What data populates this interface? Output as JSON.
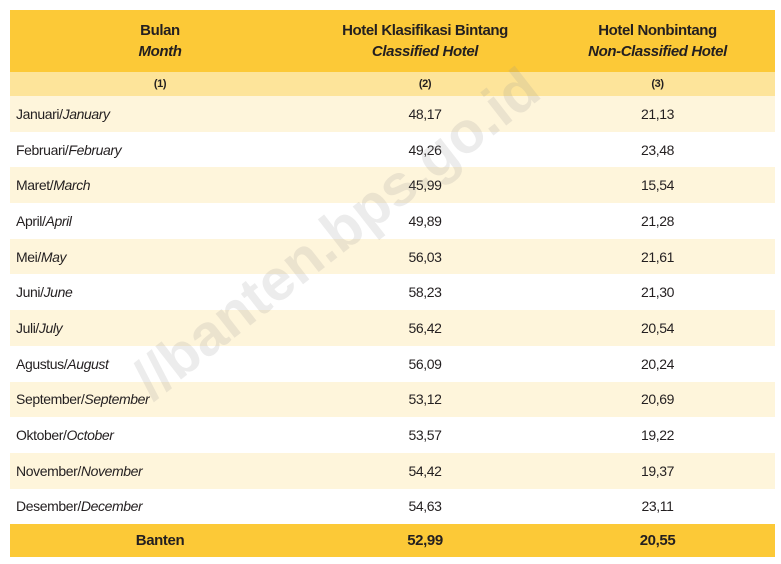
{
  "header": {
    "col1": {
      "id": "Bulan",
      "en": "Month"
    },
    "col2": {
      "id": "Hotel Klasifikasi Bintang",
      "en": "Classified Hotel"
    },
    "col3": {
      "id": "Hotel Nonbintang",
      "en": "Non-Classified Hotel"
    },
    "numbers": [
      "(1)",
      "(2)",
      "(3)"
    ]
  },
  "table": {
    "rows": [
      [
        "Januari/",
        "January",
        "48,17",
        "21,13"
      ],
      [
        "Februari/",
        "February",
        "49,26",
        "23,48"
      ],
      [
        "Maret/",
        "March",
        "45,99",
        "15,54"
      ],
      [
        "April/",
        "April",
        "49,89",
        "21,28"
      ],
      [
        "Mei/",
        "May",
        "56,03",
        "21,61"
      ],
      [
        "Juni/",
        "June",
        "58,23",
        "21,30"
      ],
      [
        "Juli/",
        "July",
        "56,42",
        "20,54"
      ],
      [
        "Agustus/",
        "August",
        "56,09",
        "20,24"
      ],
      [
        "September/",
        "September",
        "53,12",
        "20,69"
      ],
      [
        "Oktober/",
        "October",
        "53,57",
        "19,22"
      ],
      [
        "November/",
        "November",
        "54,42",
        "19,37"
      ],
      [
        "Desember/",
        "December",
        "54,63",
        "23,11"
      ]
    ],
    "total": [
      "Banten",
      "52,99",
      "20,55"
    ]
  },
  "watermark": "//banten.bps.go.id"
}
